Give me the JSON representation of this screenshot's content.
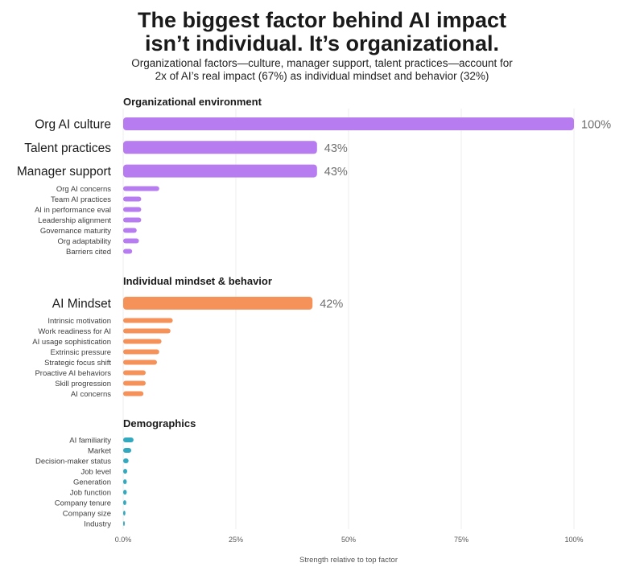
{
  "header": {
    "title_line1": "The biggest factor behind AI impact",
    "title_line2": "isn’t individual. It’s organizational.",
    "subtitle_line1": "Organizational factors—culture, manager support, talent practices—account for",
    "subtitle_line2": "2x of AI’s real impact (67%) as individual mindset and behavior (32%)"
  },
  "chart_data": {
    "type": "bar",
    "orientation": "horizontal",
    "xlabel": "Strength relative to top factor",
    "xlim": [
      0,
      100
    ],
    "xticks": [
      0,
      25,
      50,
      75,
      100
    ],
    "xtick_labels": [
      "0.0%",
      "25%",
      "50%",
      "75%",
      "100%"
    ],
    "grid": "vertical",
    "groups": [
      {
        "name": "Organizational environment",
        "color": "#b67cf0",
        "bars": [
          {
            "label": "Org AI culture",
            "value": 100,
            "value_label": "100%",
            "major": true
          },
          {
            "label": "Talent practices",
            "value": 43,
            "value_label": "43%",
            "major": true
          },
          {
            "label": "Manager support",
            "value": 43,
            "value_label": "43%",
            "major": true
          },
          {
            "label": "Org AI concerns",
            "value": 8
          },
          {
            "label": "Team AI practices",
            "value": 4
          },
          {
            "label": "AI in performance eval",
            "value": 4
          },
          {
            "label": "Leadership alignment",
            "value": 4
          },
          {
            "label": "Governance maturity",
            "value": 3
          },
          {
            "label": "Org adaptability",
            "value": 3.5
          },
          {
            "label": "Barriers cited",
            "value": 2
          }
        ]
      },
      {
        "name": "Individual mindset & behavior",
        "color": "#f5925a",
        "bars": [
          {
            "label": "AI Mindset",
            "value": 42,
            "value_label": "42%",
            "major": true
          },
          {
            "label": "Intrinsic motivation",
            "value": 11
          },
          {
            "label": "Work readiness for AI",
            "value": 10.5
          },
          {
            "label": "AI usage sophistication",
            "value": 8.5
          },
          {
            "label": "Extrinsic pressure",
            "value": 8
          },
          {
            "label": "Strategic focus shift",
            "value": 7.5
          },
          {
            "label": "Proactive AI behaviors",
            "value": 5
          },
          {
            "label": "Skill progression",
            "value": 5
          },
          {
            "label": "AI concerns",
            "value": 4.5
          }
        ]
      },
      {
        "name": "Demographics",
        "color": "#33a9c0",
        "bars": [
          {
            "label": "AI familiarity",
            "value": 2.3
          },
          {
            "label": "Market",
            "value": 1.8
          },
          {
            "label": "Decision-maker status",
            "value": 1.2
          },
          {
            "label": "Job level",
            "value": 0.9
          },
          {
            "label": "Generation",
            "value": 0.8
          },
          {
            "label": "Job function",
            "value": 0.8
          },
          {
            "label": "Company tenure",
            "value": 0.7
          },
          {
            "label": "Company size",
            "value": 0.5
          },
          {
            "label": "Industry",
            "value": 0.3
          }
        ]
      }
    ]
  }
}
